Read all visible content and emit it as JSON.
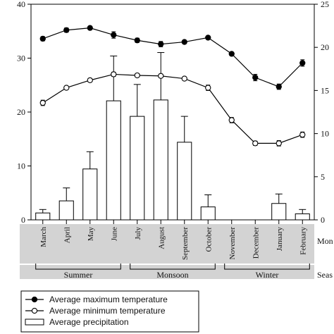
{
  "chart_data": {
    "type": "bar+line",
    "categories": [
      "March",
      "April",
      "May",
      "June",
      "July",
      "August",
      "September",
      "October",
      "November",
      "December",
      "January",
      "February"
    ],
    "category_axis_label": "Mon",
    "season_axis_label": "Seas",
    "seasons": [
      {
        "name": "Summer",
        "from": "March",
        "to": "June"
      },
      {
        "name": "Monsoon",
        "from": "July",
        "to": "October"
      },
      {
        "name": "Winter",
        "from": "November",
        "to": "February"
      }
    ],
    "left_axis": {
      "ylim": [
        0,
        40
      ],
      "ticks": [
        0,
        10,
        20,
        30,
        40
      ],
      "ylabel": ""
    },
    "right_axis": {
      "ylim": [
        0,
        25
      ],
      "ticks": [
        0,
        5,
        10,
        15,
        20,
        25
      ],
      "ylabel": ""
    },
    "series": [
      {
        "name": "Average maximum temperature",
        "type": "line",
        "axis": "left",
        "marker": "filled-circle",
        "values": [
          33.6,
          35.2,
          35.6,
          34.3,
          33.3,
          32.6,
          33.0,
          33.8,
          30.8,
          26.4,
          24.7,
          29.1
        ],
        "errors": [
          0.4,
          0.4,
          0.3,
          0.6,
          0.4,
          0.5,
          0.3,
          0.3,
          0.3,
          0.6,
          0.5,
          0.6
        ]
      },
      {
        "name": "Average minimum temperature",
        "type": "line",
        "axis": "left",
        "marker": "open-circle",
        "values": [
          21.7,
          24.5,
          25.9,
          27.0,
          26.8,
          26.7,
          26.2,
          24.5,
          18.5,
          14.2,
          14.2,
          15.8
        ],
        "errors": [
          0.5,
          0.3,
          0.3,
          0.4,
          0.3,
          0.3,
          0.3,
          0.5,
          0.5,
          0.4,
          0.5,
          0.5
        ]
      },
      {
        "name": "Average precipitation",
        "type": "bar",
        "axis": "right",
        "values": [
          0.8,
          2.2,
          5.9,
          13.8,
          12.0,
          13.9,
          9.0,
          1.5,
          0.0,
          0.0,
          1.9,
          0.7
        ],
        "errors": [
          0.4,
          1.5,
          2.0,
          5.2,
          3.7,
          5.5,
          3.0,
          1.4,
          0.0,
          0.0,
          1.1,
          0.5
        ]
      }
    ],
    "legend": {
      "position": "bottom-left"
    }
  }
}
